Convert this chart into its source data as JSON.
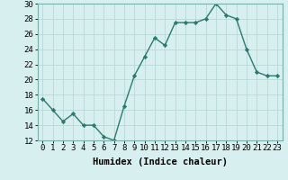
{
  "x": [
    0,
    1,
    2,
    3,
    4,
    5,
    6,
    7,
    8,
    9,
    10,
    11,
    12,
    13,
    14,
    15,
    16,
    17,
    18,
    19,
    20,
    21,
    22,
    23
  ],
  "y": [
    17.5,
    16.0,
    14.5,
    15.5,
    14.0,
    14.0,
    12.5,
    12.0,
    16.5,
    20.5,
    23.0,
    25.5,
    24.5,
    27.5,
    27.5,
    27.5,
    28.0,
    30.0,
    28.5,
    28.0,
    24.0,
    21.0,
    20.5,
    20.5
  ],
  "line_color": "#2a7a70",
  "marker": "D",
  "marker_size": 2.2,
  "line_width": 1.0,
  "bg_color": "#d7efee",
  "grid_color": "#b8d8d5",
  "xlabel": "Humidex (Indice chaleur)",
  "ylim": [
    12,
    30
  ],
  "xlim": [
    -0.5,
    23.5
  ],
  "yticks": [
    12,
    14,
    16,
    18,
    20,
    22,
    24,
    26,
    28,
    30
  ],
  "xticks": [
    0,
    1,
    2,
    3,
    4,
    5,
    6,
    7,
    8,
    9,
    10,
    11,
    12,
    13,
    14,
    15,
    16,
    17,
    18,
    19,
    20,
    21,
    22,
    23
  ],
  "xlabel_fontsize": 7.5,
  "tick_fontsize": 6.5,
  "spine_color": "#7ab0aa"
}
